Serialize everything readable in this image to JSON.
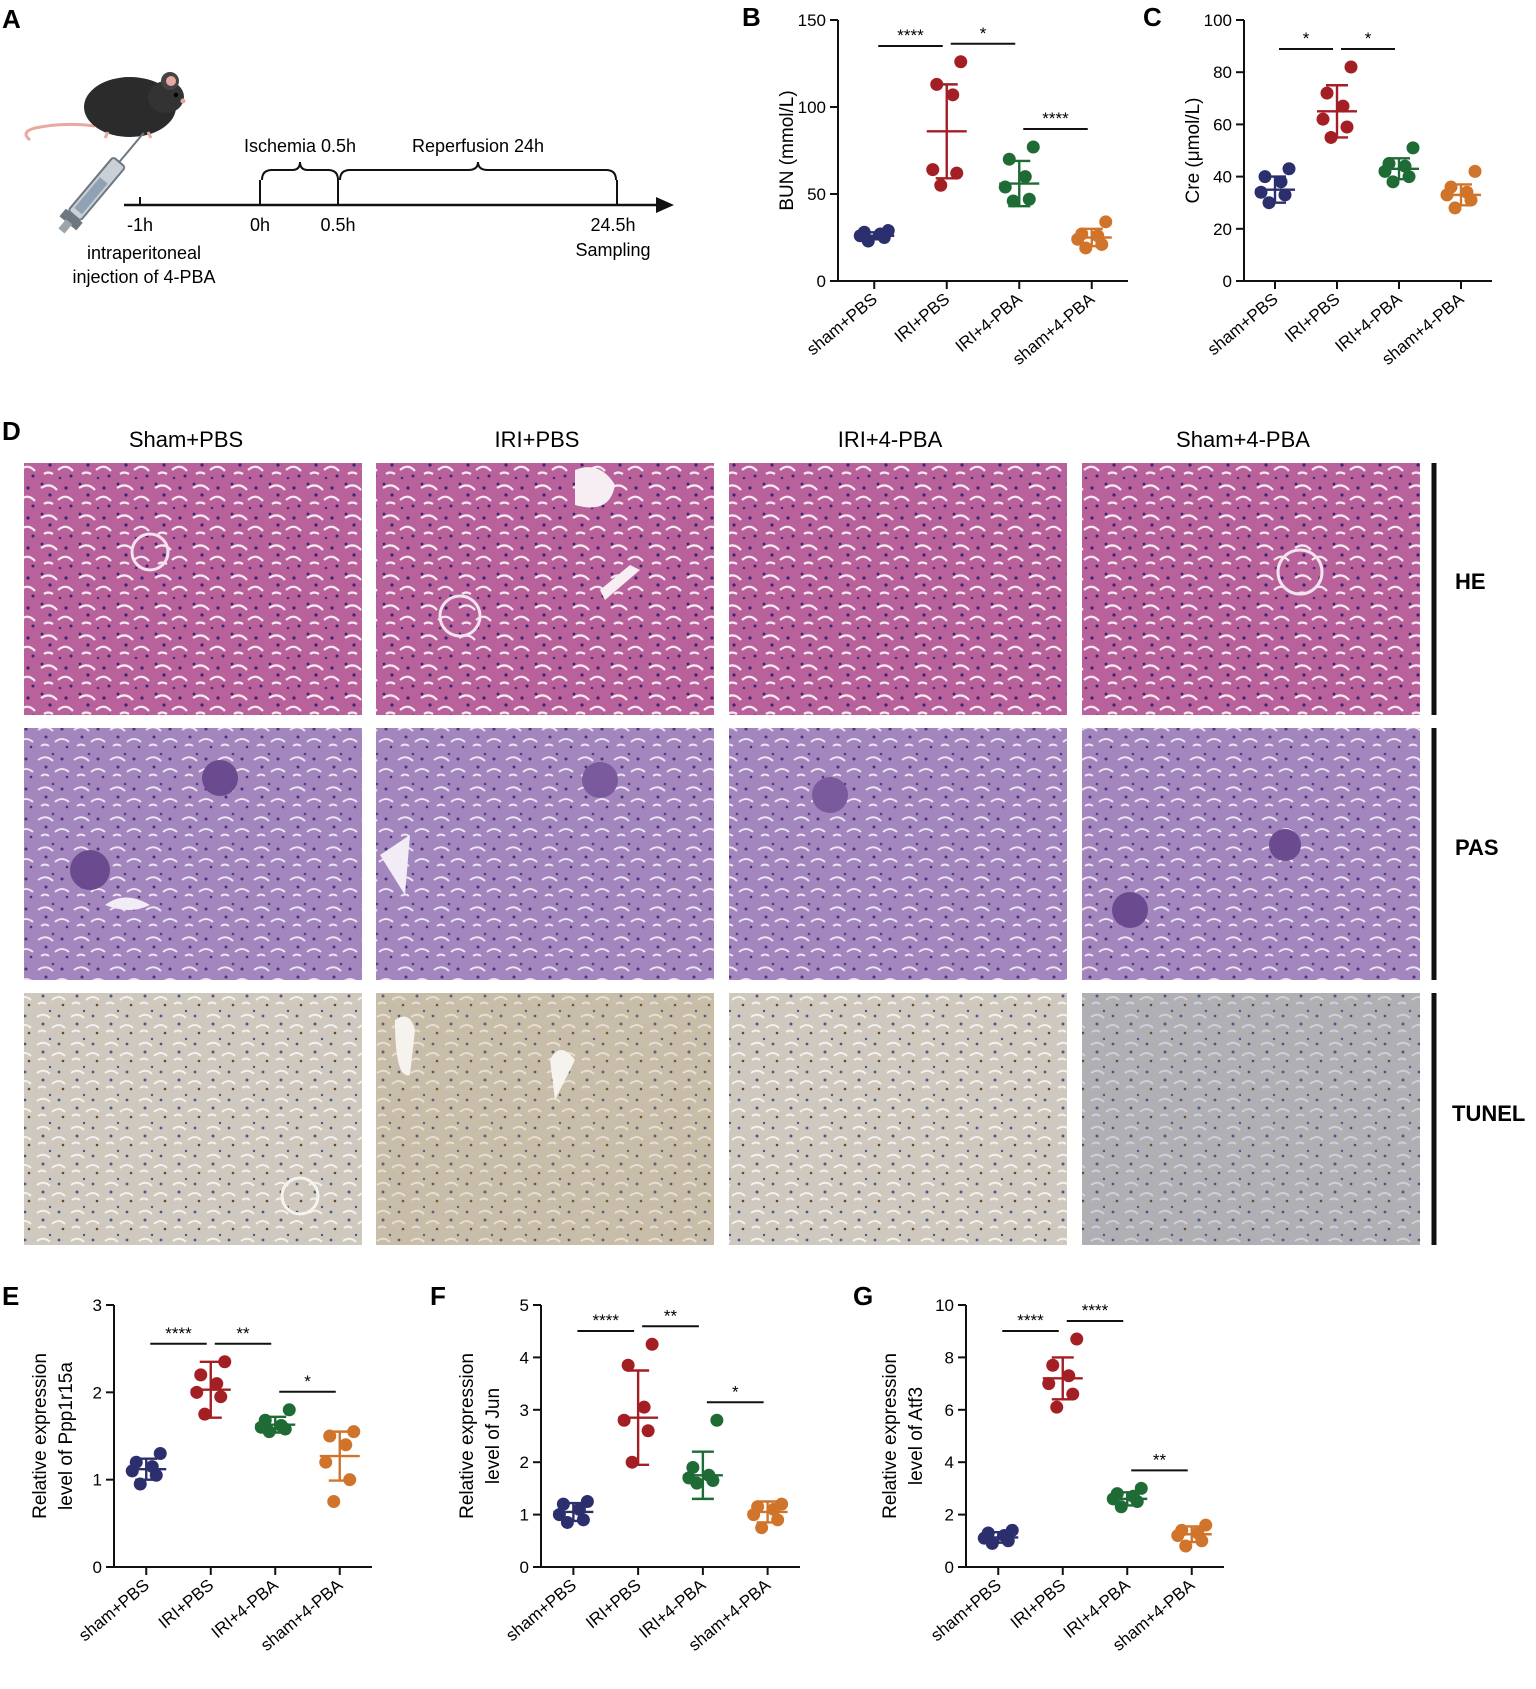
{
  "panel_letters": [
    "A",
    "B",
    "C",
    "D",
    "E",
    "F",
    "G"
  ],
  "schematic": {
    "ischemia_label": "Ischemia 0.5h",
    "reperfusion_label": "Reperfusion 24h",
    "times": [
      "-1h",
      "0h",
      "0.5h",
      "24.5h"
    ],
    "sampling_label": "Sampling",
    "injection_label_1": "intraperitoneal",
    "injection_label_2": "injection of 4-PBA"
  },
  "histology": {
    "columns": [
      "Sham+PBS",
      "IRI+PBS",
      "IRI+4-PBA",
      "Sham+4-PBA"
    ],
    "rows": [
      "HE",
      "PAS",
      "TUNEL"
    ]
  },
  "colors": {
    "sham_pbs": "#2c2f6e",
    "iri_pbs": "#a31f24",
    "iri_4pba": "#1f6b35",
    "sham_4pba": "#d0742b",
    "he": "#b25a93",
    "pas": "#9e82b8",
    "tunel": "#c7c0b4"
  },
  "chart_data": [
    {
      "type": "scatter",
      "panel": "B",
      "ylabel": "BUN (mmol/L)",
      "categories": [
        "sham+PBS",
        "IRI+PBS",
        "IRI+4-PBA",
        "sham+4-PBA"
      ],
      "ylim": [
        0,
        150
      ],
      "yticks": [
        0,
        50,
        100,
        150
      ],
      "points": [
        [
          23,
          25,
          26,
          27,
          28,
          29
        ],
        [
          55,
          62,
          64,
          107,
          113,
          126
        ],
        [
          46,
          47,
          54,
          60,
          70,
          77
        ],
        [
          19,
          21,
          24,
          26,
          27,
          34
        ]
      ],
      "mean": [
        26,
        86,
        56,
        25
      ],
      "sd": [
        2,
        27,
        13,
        5
      ],
      "significance": [
        {
          "from": 0,
          "to": 1,
          "label": "****"
        },
        {
          "from": 1,
          "to": 2,
          "label": "*"
        },
        {
          "from": 2,
          "to": 3,
          "label": "****"
        }
      ]
    },
    {
      "type": "scatter",
      "panel": "C",
      "ylabel": "Cre (μmol/L)",
      "categories": [
        "sham+PBS",
        "IRI+PBS",
        "IRI+4-PBA",
        "sham+4-PBA"
      ],
      "ylim": [
        0,
        100
      ],
      "yticks": [
        0,
        20,
        40,
        60,
        80,
        100
      ],
      "points": [
        [
          30,
          33,
          34,
          38,
          40,
          43
        ],
        [
          55,
          59,
          62,
          67,
          72,
          82
        ],
        [
          38,
          40,
          42,
          44,
          45,
          51
        ],
        [
          28,
          31,
          33,
          34,
          36,
          42
        ]
      ],
      "mean": [
        35,
        65,
        43,
        33
      ],
      "sd": [
        5,
        10,
        4,
        4
      ],
      "significance": [
        {
          "from": 0,
          "to": 1,
          "label": "*"
        },
        {
          "from": 1,
          "to": 2,
          "label": "*"
        }
      ]
    },
    {
      "type": "scatter",
      "panel": "E",
      "ylabel": "Relative expression level of Ppp1r15a",
      "categories": [
        "sham+PBS",
        "IRI+PBS",
        "IRI+4-PBA",
        "sham+4-PBA"
      ],
      "ylim": [
        0,
        3
      ],
      "yticks": [
        0,
        1,
        2,
        3
      ],
      "points": [
        [
          0.95,
          1.05,
          1.1,
          1.15,
          1.2,
          1.3
        ],
        [
          1.75,
          1.95,
          2.0,
          2.1,
          2.2,
          2.35
        ],
        [
          1.55,
          1.58,
          1.6,
          1.62,
          1.68,
          1.8
        ],
        [
          0.75,
          1.0,
          1.2,
          1.4,
          1.5,
          1.55
        ]
      ],
      "mean": [
        1.12,
        2.03,
        1.63,
        1.27
      ],
      "sd": [
        0.12,
        0.32,
        0.09,
        0.28
      ],
      "significance": [
        {
          "from": 0,
          "to": 1,
          "label": "****"
        },
        {
          "from": 1,
          "to": 2,
          "label": "**"
        },
        {
          "from": 2,
          "to": 3,
          "label": "*"
        }
      ]
    },
    {
      "type": "scatter",
      "panel": "F",
      "ylabel": "Relative expression level of Jun",
      "categories": [
        "sham+PBS",
        "IRI+PBS",
        "IRI+4-PBA",
        "sham+4-PBA"
      ],
      "ylim": [
        0,
        5
      ],
      "yticks": [
        0,
        1,
        2,
        3,
        4,
        5
      ],
      "points": [
        [
          0.85,
          0.9,
          1.0,
          1.1,
          1.2,
          1.25
        ],
        [
          2.0,
          2.6,
          2.8,
          3.05,
          3.85,
          4.25
        ],
        [
          1.6,
          1.65,
          1.7,
          1.75,
          1.9,
          2.8
        ],
        [
          0.75,
          0.9,
          1.0,
          1.1,
          1.15,
          1.2
        ]
      ],
      "mean": [
        1.05,
        2.85,
        1.75,
        1.05
      ],
      "sd": [
        0.17,
        0.9,
        0.45,
        0.2
      ],
      "significance": [
        {
          "from": 0,
          "to": 1,
          "label": "****"
        },
        {
          "from": 1,
          "to": 2,
          "label": "**"
        },
        {
          "from": 2,
          "to": 3,
          "label": "*"
        }
      ]
    },
    {
      "type": "scatter",
      "panel": "G",
      "ylabel": "Relative expression level of Atf3",
      "categories": [
        "sham+PBS",
        "IRI+PBS",
        "IRI+4-PBA",
        "sham+4-PBA"
      ],
      "ylim": [
        0,
        10
      ],
      "yticks": [
        0,
        2,
        4,
        6,
        8,
        10
      ],
      "points": [
        [
          0.9,
          1.0,
          1.1,
          1.2,
          1.3,
          1.4
        ],
        [
          6.1,
          6.6,
          7.0,
          7.3,
          7.7,
          8.7
        ],
        [
          2.3,
          2.5,
          2.6,
          2.7,
          2.8,
          3.0
        ],
        [
          0.8,
          1.0,
          1.2,
          1.3,
          1.4,
          1.6
        ]
      ],
      "mean": [
        1.13,
        7.2,
        2.6,
        1.25
      ],
      "sd": [
        0.2,
        0.8,
        0.25,
        0.3
      ],
      "significance": [
        {
          "from": 0,
          "to": 1,
          "label": "****"
        },
        {
          "from": 1,
          "to": 2,
          "label": "****"
        },
        {
          "from": 2,
          "to": 3,
          "label": "**"
        }
      ]
    }
  ]
}
